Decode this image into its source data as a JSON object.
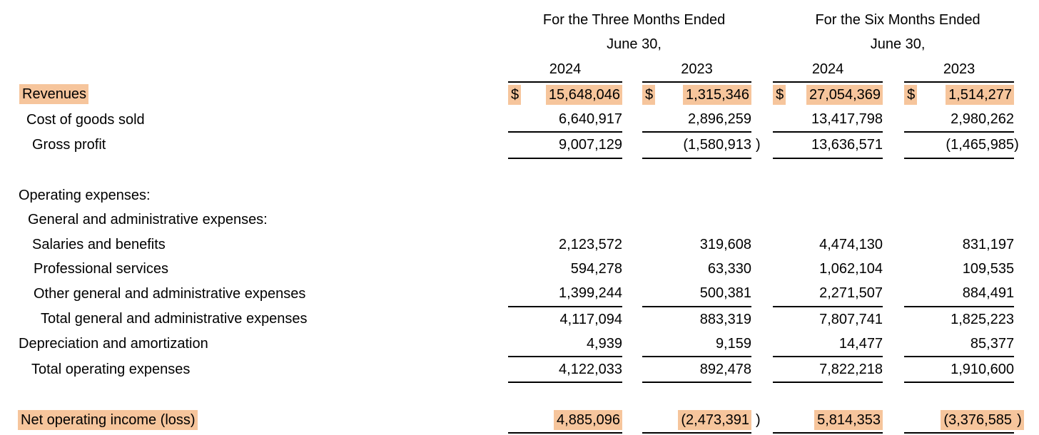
{
  "document": {
    "type": "income-statement"
  },
  "table": {
    "highlight_color": "#f6c59c",
    "currency_symbol": "$",
    "col_headers": {
      "three_months": "For the Three Months Ended",
      "six_months": "For the Six Months Ended",
      "date_line": "June 30,",
      "years": [
        "2024",
        "2023",
        "2024",
        "2023"
      ]
    },
    "rows": [
      {
        "label": "Revenues",
        "indent": 27,
        "hl_label": true,
        "dollar": true,
        "dollar_hl": true,
        "cells": [
          {
            "text": "15,648,046",
            "hl": true
          },
          {
            "text": "1,315,346",
            "hl": true
          },
          {
            "text": "27,054,369",
            "hl": true
          },
          {
            "text": "1,514,277",
            "hl": true
          }
        ]
      },
      {
        "label": "Cost of goods sold",
        "indent": 37,
        "underline": true,
        "cells": [
          {
            "text": "6,640,917"
          },
          {
            "text": "2,896,259"
          },
          {
            "text": "13,417,798"
          },
          {
            "text": "2,980,262"
          }
        ]
      },
      {
        "label": "Gross profit",
        "indent": 45,
        "underline": true,
        "cells": [
          {
            "text": "9,007,129"
          },
          {
            "text": "(1,580,913)",
            "paren_space": true
          },
          {
            "text": "13,636,571"
          },
          {
            "text": "(1,465,985)"
          }
        ]
      },
      {
        "blank": true
      },
      {
        "label": "Operating expenses:",
        "indent": 26
      },
      {
        "label": "General and administrative expenses:",
        "indent": 39
      },
      {
        "label": "Salaries and benefits",
        "indent": 45,
        "cells": [
          {
            "text": "2,123,572"
          },
          {
            "text": "319,608"
          },
          {
            "text": "4,474,130"
          },
          {
            "text": "831,197"
          }
        ]
      },
      {
        "label": "Professional services",
        "indent": 47,
        "cells": [
          {
            "text": "594,278"
          },
          {
            "text": "63,330"
          },
          {
            "text": "1,062,104"
          },
          {
            "text": "109,535"
          }
        ]
      },
      {
        "label": "Other general and administrative expenses",
        "indent": 47,
        "underline": true,
        "cells": [
          {
            "text": "1,399,244"
          },
          {
            "text": "500,381"
          },
          {
            "text": "2,271,507"
          },
          {
            "text": "884,491"
          }
        ]
      },
      {
        "label": "Total general and administrative expenses",
        "indent": 57,
        "cells": [
          {
            "text": "4,117,094"
          },
          {
            "text": "883,319"
          },
          {
            "text": "7,807,741"
          },
          {
            "text": "1,825,223"
          }
        ]
      },
      {
        "label": "Depreciation and amortization",
        "indent": 26,
        "underline": true,
        "cells": [
          {
            "text": "4,939"
          },
          {
            "text": "9,159"
          },
          {
            "text": "14,477"
          },
          {
            "text": "85,377"
          }
        ]
      },
      {
        "label": "Total operating expenses",
        "indent": 44,
        "underline": true,
        "cells": [
          {
            "text": "4,122,033"
          },
          {
            "text": "892,478"
          },
          {
            "text": "7,822,218"
          },
          {
            "text": "1,910,600"
          }
        ]
      },
      {
        "blank": true
      },
      {
        "label": "Net operating income (loss)",
        "indent": 25,
        "hl_label": true,
        "underline": true,
        "cells": [
          {
            "text": "4,885,096",
            "hl": true
          },
          {
            "text": "(2,473,391)",
            "hl": true,
            "hl_paren": false,
            "paren_space": true
          },
          {
            "text": "5,814,353",
            "hl": true
          },
          {
            "text": "(3,376,585)",
            "hl": true,
            "hl_paren": true
          }
        ]
      }
    ]
  }
}
